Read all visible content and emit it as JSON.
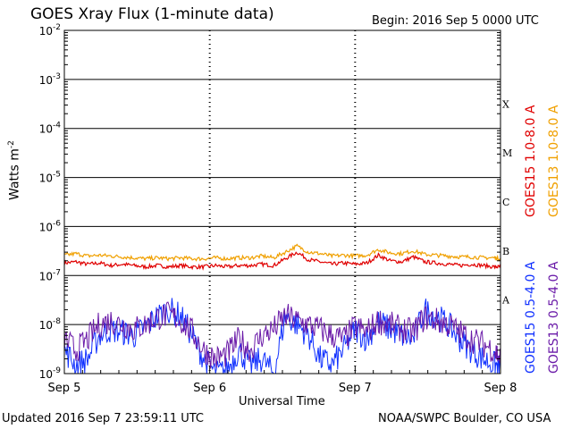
{
  "header": {
    "title": "GOES Xray Flux (1-minute data)",
    "begin": "Begin:  2016 Sep 5 0000 UTC"
  },
  "footer": {
    "updated": "Updated 2016 Sep  7 23:59:11 UTC",
    "credit": "NOAA/SWPC Boulder, CO USA"
  },
  "colors": {
    "goes15_long": "#e00000",
    "goes13_long": "#f0a000",
    "goes15_short": "#1030ff",
    "goes13_short": "#6a1aa8",
    "axis": "#000000",
    "tick": "#000000"
  },
  "chart_data": {
    "type": "line",
    "title": "GOES Xray Flux (1-minute data)",
    "xlabel": "Universal Time",
    "ylabel": "Watts m",
    "ylabel_superscript": "-2",
    "yscale": "log",
    "ylim": [
      1e-09,
      0.01
    ],
    "xlim": [
      0,
      3
    ],
    "x_unit": "days since 2016 Sep 5 0000 UTC",
    "x_ticks": [
      {
        "value": 0,
        "label": "Sep 5"
      },
      {
        "value": 1,
        "label": "Sep 6"
      },
      {
        "value": 2,
        "label": "Sep 7"
      },
      {
        "value": 3,
        "label": "Sep 8"
      }
    ],
    "y_ticks": [
      {
        "exp": -9,
        "label": "10",
        "sup": "-9"
      },
      {
        "exp": -8,
        "label": "10",
        "sup": "-8"
      },
      {
        "exp": -7,
        "label": "10",
        "sup": "-7"
      },
      {
        "exp": -6,
        "label": "10",
        "sup": "-6"
      },
      {
        "exp": -5,
        "label": "10",
        "sup": "-5"
      },
      {
        "exp": -4,
        "label": "10",
        "sup": "-4"
      },
      {
        "exp": -3,
        "label": "10",
        "sup": "-3"
      },
      {
        "exp": -2,
        "label": "10",
        "sup": "-2"
      }
    ],
    "flare_classes": [
      {
        "label": "X",
        "exp": -4
      },
      {
        "label": "M",
        "exp": -5
      },
      {
        "label": "C",
        "exp": -6
      },
      {
        "label": "B",
        "exp": -7
      },
      {
        "label": "A",
        "exp": -8
      }
    ],
    "grid": true,
    "legend_position": "right",
    "series": [
      {
        "name": "GOES15 1.0-8.0 A",
        "color": "#e00000",
        "x": [
          0,
          0.08,
          0.16,
          0.24,
          0.32,
          0.4,
          0.48,
          0.56,
          0.64,
          0.72,
          0.8,
          0.88,
          0.96,
          1.04,
          1.12,
          1.2,
          1.28,
          1.36,
          1.44,
          1.52,
          1.6,
          1.68,
          1.76,
          1.84,
          1.92,
          2,
          2.08,
          2.16,
          2.24,
          2.32,
          2.4,
          2.48,
          2.56,
          2.64,
          2.72,
          2.8,
          2.88,
          2.96,
          3
        ],
        "y": [
          1.8e-07,
          1.9e-07,
          1.7e-07,
          1.8e-07,
          1.6e-07,
          1.7e-07,
          1.6e-07,
          1.5e-07,
          1.6e-07,
          1.5e-07,
          1.6e-07,
          1.5e-07,
          1.5e-07,
          1.6e-07,
          1.5e-07,
          1.6e-07,
          1.6e-07,
          1.7e-07,
          1.6e-07,
          2.2e-07,
          3e-07,
          2.1e-07,
          1.9e-07,
          1.7e-07,
          1.8e-07,
          1.7e-07,
          1.8e-07,
          2.6e-07,
          2e-07,
          1.9e-07,
          2.4e-07,
          1.9e-07,
          1.8e-07,
          1.7e-07,
          1.6e-07,
          1.7e-07,
          1.6e-07,
          1.5e-07,
          1.5e-07
        ]
      },
      {
        "name": "GOES13 1.0-8.0 A",
        "color": "#f0a000",
        "x": [
          0,
          0.08,
          0.16,
          0.24,
          0.32,
          0.4,
          0.48,
          0.56,
          0.64,
          0.72,
          0.8,
          0.88,
          0.96,
          1.04,
          1.12,
          1.2,
          1.28,
          1.36,
          1.44,
          1.52,
          1.6,
          1.68,
          1.76,
          1.84,
          1.92,
          2,
          2.08,
          2.16,
          2.24,
          2.32,
          2.4,
          2.48,
          2.56,
          2.64,
          2.72,
          2.8,
          2.88,
          2.96,
          3
        ],
        "y": [
          2.6e-07,
          2.8e-07,
          2.5e-07,
          2.6e-07,
          2.5e-07,
          2.4e-07,
          2.3e-07,
          2.2e-07,
          2.3e-07,
          2.2e-07,
          2.3e-07,
          2.2e-07,
          2.2e-07,
          2.3e-07,
          2.2e-07,
          2.3e-07,
          2.3e-07,
          2.5e-07,
          2.3e-07,
          3e-07,
          4e-07,
          3e-07,
          2.8e-07,
          2.5e-07,
          2.6e-07,
          2.5e-07,
          2.6e-07,
          3.4e-07,
          2.9e-07,
          2.8e-07,
          3.2e-07,
          2.7e-07,
          2.6e-07,
          2.5e-07,
          2.4e-07,
          2.4e-07,
          2.3e-07,
          2.3e-07,
          2.2e-07
        ]
      },
      {
        "name": "GOES15 0.5-4.0 A",
        "color": "#1030ff",
        "x": [
          0,
          0.08,
          0.16,
          0.24,
          0.32,
          0.4,
          0.48,
          0.56,
          0.64,
          0.72,
          0.8,
          0.88,
          0.96,
          1.04,
          1.12,
          1.2,
          1.28,
          1.36,
          1.44,
          1.52,
          1.6,
          1.68,
          1.76,
          1.84,
          1.92,
          2,
          2.08,
          2.16,
          2.24,
          2.32,
          2.4,
          2.48,
          2.56,
          2.64,
          2.72,
          2.8,
          2.88,
          2.96,
          3
        ],
        "y": [
          3e-09,
          1.5e-09,
          2e-09,
          6e-09,
          8e-09,
          7e-09,
          6e-09,
          9e-09,
          1.5e-08,
          2e-08,
          1.5e-08,
          6e-09,
          2e-09,
          1e-09,
          1.2e-09,
          3e-09,
          1.5e-09,
          2e-09,
          1e-09,
          1.5e-08,
          1e-08,
          6e-09,
          2e-09,
          1.5e-09,
          3e-09,
          8e-09,
          5e-09,
          1.2e-08,
          8e-09,
          6e-09,
          5e-09,
          2e-08,
          1.5e-08,
          1e-08,
          5e-09,
          3e-09,
          2e-09,
          1.5e-09,
          1.2e-09
        ]
      },
      {
        "name": "GOES13 0.5-4.0 A",
        "color": "#6a1aa8",
        "x": [
          0,
          0.08,
          0.16,
          0.24,
          0.32,
          0.4,
          0.48,
          0.56,
          0.64,
          0.72,
          0.8,
          0.88,
          0.96,
          1.04,
          1.12,
          1.2,
          1.28,
          1.36,
          1.44,
          1.52,
          1.6,
          1.68,
          1.76,
          1.84,
          1.92,
          2,
          2.08,
          2.16,
          2.24,
          2.32,
          2.4,
          2.48,
          2.56,
          2.64,
          2.72,
          2.8,
          2.88,
          2.96,
          3
        ],
        "y": [
          5e-09,
          3e-09,
          5e-09,
          1e-08,
          1.2e-08,
          1e-08,
          8e-09,
          1e-08,
          1.4e-08,
          1.6e-08,
          1.2e-08,
          7e-09,
          3e-09,
          2e-09,
          2.5e-09,
          5e-09,
          3e-09,
          6e-09,
          8e-09,
          1.5e-08,
          1.2e-08,
          1e-08,
          8e-09,
          6e-09,
          5e-09,
          9e-09,
          7e-09,
          1.2e-08,
          1e-08,
          8e-09,
          7e-09,
          1.4e-08,
          1.2e-08,
          1e-08,
          7e-09,
          5e-09,
          4e-09,
          3e-09,
          2e-09
        ]
      }
    ]
  }
}
